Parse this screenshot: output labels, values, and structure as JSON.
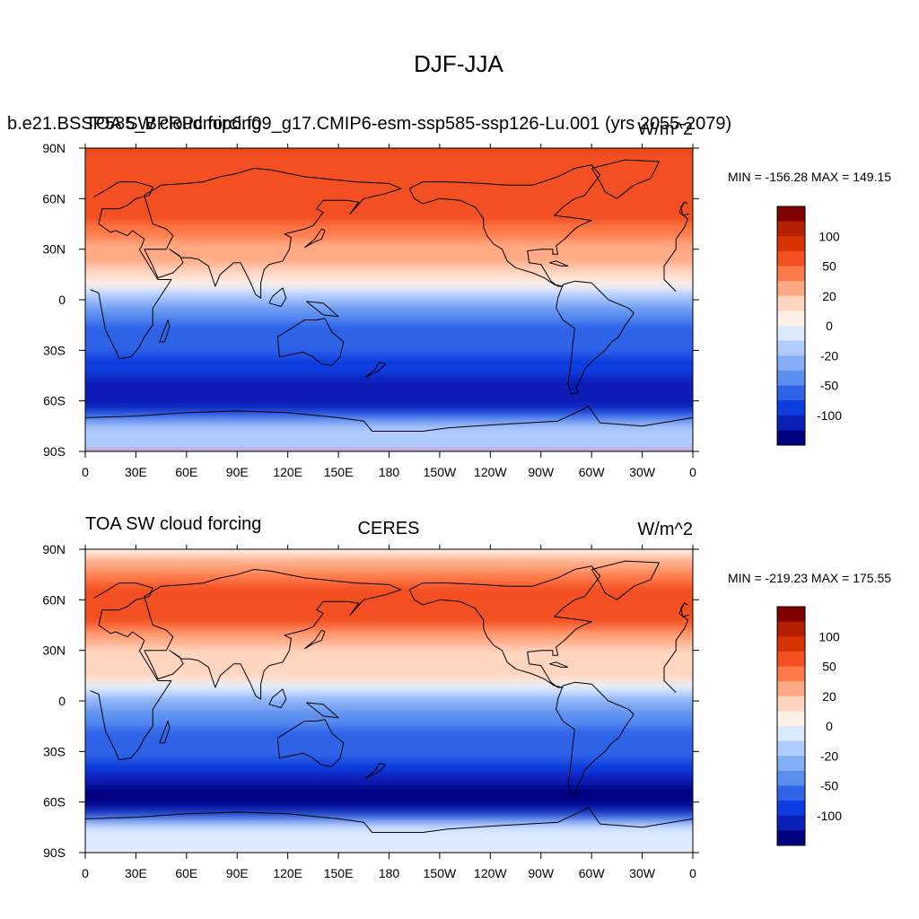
{
  "figure": {
    "title": "DJF-JJA"
  },
  "chart_data": [
    {
      "type": "heatmap",
      "map_projection": "cylindrical-equidistant",
      "left_title": "b.e21.BSSP585_BPRPcmip6.f09_g17.CMIP6-esm-ssp585-ssp126-Lu.001 (yrs 2055-2079)",
      "left_title_overlap": "TOA SW cloud forcing",
      "center_title": "",
      "units": "W/m^2",
      "stats": "MIN = -156.28 MAX = 149.15",
      "xticks": [
        "0",
        "30E",
        "60E",
        "90E",
        "120E",
        "150E",
        "180",
        "150W",
        "120W",
        "90W",
        "60W",
        "30W",
        "0"
      ],
      "yticks": [
        "90N",
        "60N",
        "30N",
        "0",
        "30S",
        "60S",
        "90S"
      ],
      "xlim": [
        0,
        360
      ],
      "ylim": [
        -90,
        90
      ],
      "grid": false,
      "colorbar": {
        "placement": "right",
        "labels": [
          "100",
          "50",
          "20",
          "0",
          "-20",
          "-50",
          "-100"
        ],
        "colors": [
          "#800000",
          "#b22000",
          "#d83200",
          "#f25020",
          "#ff7b49",
          "#ffaa84",
          "#ffd5bf",
          "#fff0e6",
          "#dbeaff",
          "#b0ccff",
          "#86aef5",
          "#5a8ff0",
          "#2d64e8",
          "#0e3ce0",
          "#0a1fb5",
          "#000080"
        ]
      },
      "zonal_profile_wm2": [
        {
          "lat": 90,
          "value": 100
        },
        {
          "lat": 75,
          "value": 95
        },
        {
          "lat": 60,
          "value": 85
        },
        {
          "lat": 45,
          "value": 70
        },
        {
          "lat": 30,
          "value": 40
        },
        {
          "lat": 15,
          "value": 25
        },
        {
          "lat": 0,
          "value": -10
        },
        {
          "lat": -15,
          "value": -35
        },
        {
          "lat": -30,
          "value": -45
        },
        {
          "lat": -45,
          "value": -70
        },
        {
          "lat": -60,
          "value": -100
        },
        {
          "lat": -75,
          "value": -5
        },
        {
          "lat": -90,
          "value": -3
        }
      ]
    },
    {
      "type": "heatmap",
      "map_projection": "cylindrical-equidistant",
      "left_title": "TOA SW cloud forcing",
      "center_title": "CERES",
      "units": "W/m^2",
      "stats": "MIN = -219.23 MAX = 175.55",
      "xticks": [
        "0",
        "30E",
        "60E",
        "90E",
        "120E",
        "150E",
        "180",
        "150W",
        "120W",
        "90W",
        "60W",
        "30W",
        "0"
      ],
      "yticks": [
        "90N",
        "60N",
        "30N",
        "0",
        "30S",
        "60S",
        "90S"
      ],
      "xlim": [
        0,
        360
      ],
      "ylim": [
        -90,
        90
      ],
      "grid": false,
      "colorbar": {
        "placement": "right",
        "labels": [
          "100",
          "50",
          "20",
          "0",
          "-20",
          "-50",
          "-100"
        ],
        "colors": [
          "#800000",
          "#b22000",
          "#d83200",
          "#f25020",
          "#ff7b49",
          "#ffaa84",
          "#ffd5bf",
          "#fff0e6",
          "#dbeaff",
          "#b0ccff",
          "#86aef5",
          "#5a8ff0",
          "#2d64e8",
          "#0e3ce0",
          "#0a1fb5",
          "#000080"
        ]
      },
      "zonal_profile_wm2": [
        {
          "lat": 90,
          "value": 10
        },
        {
          "lat": 75,
          "value": 60
        },
        {
          "lat": 60,
          "value": 90
        },
        {
          "lat": 45,
          "value": 70
        },
        {
          "lat": 30,
          "value": 20
        },
        {
          "lat": 15,
          "value": 25
        },
        {
          "lat": 0,
          "value": -15
        },
        {
          "lat": -15,
          "value": -30
        },
        {
          "lat": -30,
          "value": -40
        },
        {
          "lat": -45,
          "value": -80
        },
        {
          "lat": -60,
          "value": -130
        },
        {
          "lat": -75,
          "value": 10
        },
        {
          "lat": -90,
          "value": 5
        }
      ]
    }
  ]
}
